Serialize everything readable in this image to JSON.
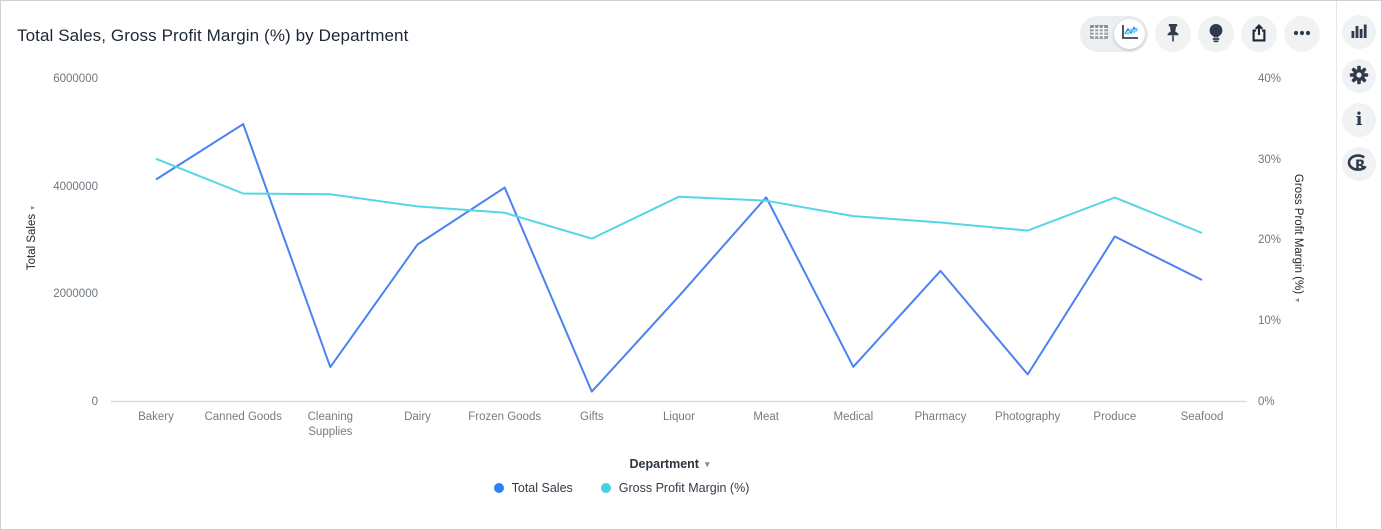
{
  "window": {
    "title": "Total Sales, Gross Profit Margin (%) by Department"
  },
  "toolbar": {
    "view_toggle": {
      "options": [
        "table",
        "chart"
      ],
      "active": "chart"
    },
    "buttons": [
      "pin",
      "insights",
      "export",
      "more-options"
    ]
  },
  "right_sidebar": {
    "buttons": [
      "charts",
      "settings",
      "info",
      "r-logo"
    ]
  },
  "colors": {
    "total_sales_line": "#4a82f2",
    "total_sales_dot": "#2d7ef7",
    "gpm_line": "#55d6e4",
    "gpm_dot": "#45cfe0",
    "axis_line": "#d8dbde",
    "icon": "#2f3a4d"
  },
  "chart_data": {
    "type": "line",
    "title": "Total Sales, Gross Profit Margin (%) by Department",
    "grid": false,
    "legend_position": "bottom",
    "categories": [
      "Bakery",
      "Canned Goods",
      "Cleaning Supplies",
      "Dairy",
      "Frozen Goods",
      "Gifts",
      "Liquor",
      "Meat",
      "Medical",
      "Pharmacy",
      "Photography",
      "Produce",
      "Seafood"
    ],
    "series": [
      {
        "name": "Total Sales",
        "axis": "left",
        "color": "#2d7ef7",
        "line_color": "#4a82f2",
        "values": [
          4130000,
          5160000,
          640000,
          2920000,
          3980000,
          185000,
          1960000,
          3800000,
          645000,
          2430000,
          505000,
          3070000,
          2260000
        ]
      },
      {
        "name": "Gross Profit Margin (%)",
        "axis": "right",
        "color": "#45cfe0",
        "line_color": "#55d6e4",
        "values": [
          30.1,
          25.8,
          25.7,
          24.2,
          23.4,
          20.2,
          25.4,
          24.9,
          23.0,
          22.2,
          21.2,
          25.3,
          20.9
        ]
      }
    ],
    "left_axis": {
      "label": "Total Sales",
      "min": 0,
      "max": 6000000,
      "ticks": [
        {
          "label": "6000000",
          "value": 6000000
        },
        {
          "label": "4000000",
          "value": 4000000
        },
        {
          "label": "2000000",
          "value": 2000000
        },
        {
          "label": "0",
          "value": 0
        }
      ]
    },
    "right_axis": {
      "label": "Gross Profit Margin (%)",
      "min": 0,
      "max": 40,
      "ticks": [
        {
          "label": "40%",
          "value": 40
        },
        {
          "label": "30%",
          "value": 30
        },
        {
          "label": "20%",
          "value": 20
        },
        {
          "label": "10%",
          "value": 10
        },
        {
          "label": "0%",
          "value": 0
        }
      ]
    },
    "x_axis": {
      "label": "Department"
    }
  }
}
